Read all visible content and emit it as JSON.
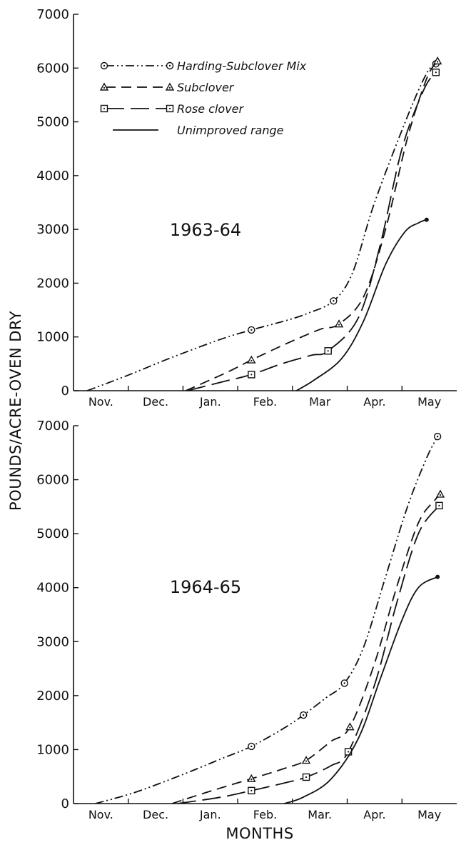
{
  "chart_data": [
    {
      "type": "line",
      "panel_label": "1963-64",
      "categories": [
        "Nov.",
        "Dec.",
        "Jan.",
        "Feb.",
        "Mar",
        "Apr.",
        "May"
      ],
      "ylim": [
        0,
        7000
      ],
      "y_ticks": [
        "0",
        "1000",
        "2000",
        "3000",
        "4000",
        "5000",
        "6000",
        "7000"
      ],
      "grid": false,
      "legend_position": "top-left",
      "series": [
        {
          "name": "Harding-Subclover Mix",
          "marker": "circle-dot",
          "style": "dash-dot-dot",
          "points": [
            [
              -0.25,
              0
            ],
            [
              0.5,
              290
            ],
            [
              1.3,
              620
            ],
            [
              2.2,
              960
            ],
            [
              2.75,
              1130
            ],
            [
              3.4,
              1310
            ],
            [
              3.78,
              1440
            ],
            [
              4.25,
              1670
            ],
            [
              4.6,
              2200
            ],
            [
              5.0,
              3500
            ],
            [
              5.6,
              5100
            ],
            [
              5.95,
              5900
            ],
            [
              6.12,
              6080
            ]
          ],
          "markers": [
            [
              2.75,
              1130
            ],
            [
              4.25,
              1670
            ],
            [
              6.12,
              6080
            ]
          ]
        },
        {
          "name": "Subclover",
          "marker": "triangle",
          "style": "dash",
          "points": [
            [
              1.55,
              0
            ],
            [
              2.3,
              340
            ],
            [
              2.75,
              570
            ],
            [
              3.4,
              880
            ],
            [
              4.0,
              1140
            ],
            [
              4.35,
              1240
            ],
            [
              4.8,
              1750
            ],
            [
              5.2,
              3000
            ],
            [
              5.6,
              4700
            ],
            [
              5.95,
              5800
            ],
            [
              6.15,
              6130
            ]
          ],
          "markers": [
            [
              2.75,
              570
            ],
            [
              4.35,
              1240
            ],
            [
              6.15,
              6130
            ]
          ]
        },
        {
          "name": "Rose clover",
          "marker": "square-dot",
          "style": "long-dash",
          "points": [
            [
              1.58,
              0
            ],
            [
              2.2,
              160
            ],
            [
              2.75,
              300
            ],
            [
              3.3,
              500
            ],
            [
              3.85,
              660
            ],
            [
              4.15,
              740
            ],
            [
              4.7,
              1350
            ],
            [
              5.1,
              2700
            ],
            [
              5.5,
              4500
            ],
            [
              5.9,
              5600
            ],
            [
              6.12,
              5920
            ]
          ],
          "markers": [
            [
              2.75,
              300
            ],
            [
              4.15,
              740
            ],
            [
              6.12,
              5920
            ]
          ]
        },
        {
          "name": "Unimproved range",
          "marker": "dot",
          "style": "solid",
          "points": [
            [
              3.57,
              0
            ],
            [
              3.9,
              200
            ],
            [
              4.4,
              600
            ],
            [
              4.8,
              1300
            ],
            [
              5.2,
              2350
            ],
            [
              5.55,
              2950
            ],
            [
              5.8,
              3120
            ],
            [
              5.95,
              3180
            ]
          ],
          "markers": [
            [
              5.95,
              3180
            ]
          ]
        }
      ]
    },
    {
      "type": "line",
      "panel_label": "1964-65",
      "categories": [
        "Nov.",
        "Dec.",
        "Jan.",
        "Feb.",
        "Mar.",
        "Apr.",
        "May"
      ],
      "ylim": [
        0,
        7000
      ],
      "y_ticks": [
        "0",
        "1000",
        "2000",
        "3000",
        "4000",
        "5000",
        "6000",
        "7000"
      ],
      "grid": false,
      "legend_position": "none",
      "series": [
        {
          "name": "Harding-Subclover Mix",
          "marker": "circle-dot",
          "style": "dash-dot-dot",
          "points": [
            [
              -0.1,
              0
            ],
            [
              0.6,
              200
            ],
            [
              1.4,
              500
            ],
            [
              2.2,
              830
            ],
            [
              2.75,
              1060
            ],
            [
              3.35,
              1400
            ],
            [
              3.7,
              1640
            ],
            [
              4.1,
              1950
            ],
            [
              4.45,
              2230
            ],
            [
              4.8,
              2900
            ],
            [
              5.2,
              4200
            ],
            [
              5.6,
              5500
            ],
            [
              5.95,
              6400
            ],
            [
              6.15,
              6800
            ]
          ],
          "markers": [
            [
              2.75,
              1060
            ],
            [
              3.7,
              1640
            ],
            [
              4.45,
              2230
            ],
            [
              6.15,
              6800
            ]
          ]
        },
        {
          "name": "Subclover",
          "marker": "triangle",
          "style": "dash",
          "points": [
            [
              1.3,
              0
            ],
            [
              2.0,
              230
            ],
            [
              2.75,
              460
            ],
            [
              3.35,
              650
            ],
            [
              3.75,
              800
            ],
            [
              4.2,
              1150
            ],
            [
              4.55,
              1420
            ],
            [
              5.0,
              2600
            ],
            [
              5.4,
              4000
            ],
            [
              5.8,
              5200
            ],
            [
              6.1,
              5620
            ],
            [
              6.2,
              5730
            ]
          ],
          "markers": [
            [
              2.75,
              460
            ],
            [
              3.75,
              800
            ],
            [
              4.55,
              1420
            ],
            [
              6.2,
              5730
            ]
          ]
        },
        {
          "name": "Rose clover",
          "marker": "square-dot",
          "style": "long-dash",
          "points": [
            [
              1.4,
              0
            ],
            [
              2.2,
              120
            ],
            [
              2.75,
              240
            ],
            [
              3.35,
              380
            ],
            [
              3.75,
              490
            ],
            [
              4.2,
              700
            ],
            [
              4.52,
              960
            ],
            [
              5.0,
              2200
            ],
            [
              5.4,
              3700
            ],
            [
              5.8,
              5000
            ],
            [
              6.18,
              5520
            ]
          ],
          "markers": [
            [
              2.75,
              240
            ],
            [
              3.75,
              490
            ],
            [
              4.52,
              960
            ],
            [
              6.18,
              5520
            ]
          ]
        },
        {
          "name": "Unimproved range",
          "marker": "dot",
          "style": "solid",
          "points": [
            [
              3.35,
              0
            ],
            [
              3.7,
              120
            ],
            [
              4.2,
              450
            ],
            [
              4.7,
              1200
            ],
            [
              5.1,
              2300
            ],
            [
              5.5,
              3400
            ],
            [
              5.8,
              4000
            ],
            [
              6.15,
              4200
            ]
          ],
          "markers": [
            [
              6.15,
              4200
            ]
          ]
        }
      ]
    }
  ],
  "y_axis_title": "POUNDS/ACRE-OVEN DRY",
  "x_axis_title": "MONTHS"
}
